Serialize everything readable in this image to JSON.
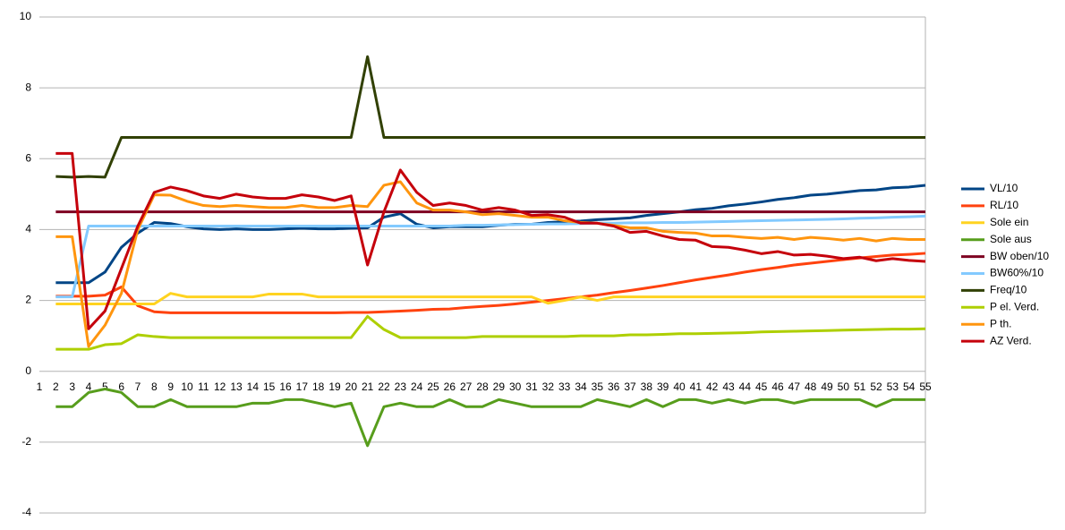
{
  "chart_data": {
    "type": "line",
    "categories": [
      1,
      2,
      3,
      4,
      5,
      6,
      7,
      8,
      9,
      10,
      11,
      12,
      13,
      14,
      15,
      16,
      17,
      18,
      19,
      20,
      21,
      22,
      23,
      24,
      25,
      26,
      27,
      28,
      29,
      30,
      31,
      32,
      33,
      34,
      35,
      36,
      37,
      38,
      39,
      40,
      41,
      42,
      43,
      44,
      45,
      46,
      47,
      48,
      49,
      50,
      51,
      52,
      53,
      54,
      55
    ],
    "ylim": [
      -4,
      10
    ],
    "yticks": [
      -4,
      -2,
      0,
      2,
      4,
      6,
      8,
      10
    ],
    "grid": true,
    "legend": "right",
    "series": [
      {
        "name": "VL/10",
        "color": "#004586",
        "values": [
          null,
          2.5,
          2.5,
          2.5,
          2.8,
          3.5,
          3.9,
          4.2,
          4.17,
          4.08,
          4.02,
          4.0,
          4.02,
          4.0,
          4.0,
          4.02,
          4.04,
          4.02,
          4.02,
          4.04,
          4.05,
          4.35,
          4.45,
          4.15,
          4.05,
          4.08,
          4.08,
          4.08,
          4.12,
          4.15,
          4.15,
          4.2,
          4.22,
          4.24,
          4.28,
          4.3,
          4.33,
          4.4,
          4.45,
          4.5,
          4.56,
          4.6,
          4.67,
          4.72,
          4.78,
          4.85,
          4.9,
          4.97,
          5.0,
          5.05,
          5.1,
          5.12,
          5.18,
          5.2,
          5.25
        ]
      },
      {
        "name": "RL/10",
        "color": "#ff420e",
        "values": [
          null,
          2.12,
          2.12,
          2.12,
          2.15,
          2.38,
          1.85,
          1.68,
          1.65,
          1.65,
          1.65,
          1.65,
          1.65,
          1.65,
          1.65,
          1.65,
          1.65,
          1.65,
          1.65,
          1.66,
          1.66,
          1.68,
          1.7,
          1.72,
          1.75,
          1.76,
          1.8,
          1.83,
          1.86,
          1.9,
          1.95,
          2.0,
          2.05,
          2.1,
          2.15,
          2.22,
          2.28,
          2.35,
          2.42,
          2.5,
          2.58,
          2.65,
          2.72,
          2.8,
          2.87,
          2.93,
          3.0,
          3.05,
          3.1,
          3.15,
          3.2,
          3.24,
          3.28,
          3.3,
          3.33
        ]
      },
      {
        "name": "Sole ein",
        "color": "#ffd320",
        "values": [
          null,
          1.9,
          1.9,
          1.9,
          1.9,
          1.9,
          1.9,
          1.9,
          2.2,
          2.1,
          2.1,
          2.1,
          2.1,
          2.1,
          2.18,
          2.18,
          2.18,
          2.1,
          2.1,
          2.1,
          2.1,
          2.1,
          2.1,
          2.1,
          2.1,
          2.1,
          2.1,
          2.1,
          2.1,
          2.1,
          2.1,
          1.92,
          2.0,
          2.1,
          2.0,
          2.1,
          2.1,
          2.1,
          2.1,
          2.1,
          2.1,
          2.1,
          2.1,
          2.1,
          2.1,
          2.1,
          2.1,
          2.1,
          2.1,
          2.1,
          2.1,
          2.1,
          2.1,
          2.1,
          2.1
        ]
      },
      {
        "name": "Sole aus",
        "color": "#579d1c",
        "values": [
          null,
          -1,
          -1,
          -0.6,
          -0.5,
          -0.6,
          -1,
          -1,
          -0.8,
          -1,
          -1,
          -1,
          -1,
          -0.9,
          -0.9,
          -0.8,
          -0.8,
          -0.9,
          -1,
          -0.9,
          -2.1,
          -1,
          -0.9,
          -1,
          -1,
          -0.8,
          -1,
          -1,
          -0.8,
          -0.9,
          -1,
          -1,
          -1,
          -1,
          -0.8,
          -0.9,
          -1,
          -0.8,
          -1,
          -0.8,
          -0.8,
          -0.9,
          -0.8,
          -0.9,
          -0.8,
          -0.8,
          -0.9,
          -0.8,
          -0.8,
          -0.8,
          -0.8,
          -1,
          -0.8,
          -0.8,
          -0.8
        ]
      },
      {
        "name": "BW oben/10",
        "color": "#7e0021",
        "values": [
          null,
          4.5,
          4.5,
          4.5,
          4.5,
          4.5,
          4.5,
          4.5,
          4.5,
          4.5,
          4.5,
          4.5,
          4.5,
          4.5,
          4.5,
          4.5,
          4.5,
          4.5,
          4.5,
          4.5,
          4.5,
          4.5,
          4.5,
          4.5,
          4.5,
          4.5,
          4.5,
          4.5,
          4.5,
          4.5,
          4.5,
          4.5,
          4.5,
          4.5,
          4.5,
          4.5,
          4.5,
          4.5,
          4.5,
          4.5,
          4.5,
          4.5,
          4.5,
          4.5,
          4.5,
          4.5,
          4.5,
          4.5,
          4.5,
          4.5,
          4.5,
          4.5,
          4.5,
          4.5,
          4.5
        ]
      },
      {
        "name": "BW60%/10",
        "color": "#83caff",
        "values": [
          null,
          2.1,
          2.1,
          4.1,
          4.1,
          4.1,
          4.1,
          4.1,
          4.1,
          4.1,
          4.1,
          4.1,
          4.1,
          4.1,
          4.1,
          4.1,
          4.1,
          4.1,
          4.1,
          4.1,
          4.1,
          4.1,
          4.1,
          4.1,
          4.1,
          4.1,
          4.12,
          4.12,
          4.13,
          4.14,
          4.15,
          4.16,
          4.16,
          4.17,
          4.18,
          4.18,
          4.19,
          4.19,
          4.2,
          4.2,
          4.21,
          4.22,
          4.23,
          4.24,
          4.25,
          4.26,
          4.27,
          4.28,
          4.29,
          4.3,
          4.32,
          4.33,
          4.35,
          4.36,
          4.38
        ]
      },
      {
        "name": "Freq/10",
        "color": "#314004",
        "values": [
          null,
          5.5,
          5.48,
          5.5,
          5.48,
          6.6,
          6.6,
          6.6,
          6.6,
          6.6,
          6.6,
          6.6,
          6.6,
          6.6,
          6.6,
          6.6,
          6.6,
          6.6,
          6.6,
          6.6,
          8.88,
          6.6,
          6.6,
          6.6,
          6.6,
          6.6,
          6.6,
          6.6,
          6.6,
          6.6,
          6.6,
          6.6,
          6.6,
          6.6,
          6.6,
          6.6,
          6.6,
          6.6,
          6.6,
          6.6,
          6.6,
          6.6,
          6.6,
          6.6,
          6.6,
          6.6,
          6.6,
          6.6,
          6.6,
          6.6,
          6.6,
          6.6,
          6.6,
          6.6,
          6.6
        ]
      },
      {
        "name": "P el. Verd.",
        "color": "#aecf00",
        "values": [
          null,
          0.62,
          0.62,
          0.62,
          0.75,
          0.78,
          1.03,
          0.98,
          0.95,
          0.95,
          0.95,
          0.95,
          0.95,
          0.95,
          0.95,
          0.95,
          0.95,
          0.95,
          0.95,
          0.95,
          1.55,
          1.18,
          0.95,
          0.95,
          0.95,
          0.95,
          0.95,
          0.98,
          0.98,
          0.98,
          0.98,
          0.98,
          0.98,
          1.0,
          1.0,
          1.0,
          1.03,
          1.03,
          1.04,
          1.06,
          1.06,
          1.07,
          1.08,
          1.09,
          1.11,
          1.12,
          1.13,
          1.14,
          1.15,
          1.16,
          1.17,
          1.18,
          1.19,
          1.19,
          1.2
        ]
      },
      {
        "name": "P th.",
        "color": "#ff950e",
        "values": [
          null,
          3.8,
          3.8,
          0.7,
          1.3,
          2.2,
          4.0,
          4.98,
          4.97,
          4.8,
          4.68,
          4.65,
          4.68,
          4.65,
          4.62,
          4.62,
          4.68,
          4.62,
          4.62,
          4.68,
          4.65,
          5.25,
          5.35,
          4.75,
          4.55,
          4.55,
          4.5,
          4.42,
          4.45,
          4.4,
          4.35,
          4.35,
          4.25,
          4.2,
          4.18,
          4.12,
          4.05,
          4.05,
          3.95,
          3.92,
          3.9,
          3.82,
          3.82,
          3.78,
          3.75,
          3.78,
          3.72,
          3.78,
          3.75,
          3.7,
          3.75,
          3.68,
          3.75,
          3.72,
          3.72
        ]
      },
      {
        "name": "AZ Verd.",
        "color": "#c5000b",
        "values": [
          null,
          6.15,
          6.15,
          1.2,
          1.7,
          2.9,
          4.1,
          5.05,
          5.2,
          5.1,
          4.95,
          4.88,
          5.0,
          4.92,
          4.88,
          4.88,
          4.98,
          4.92,
          4.82,
          4.95,
          3.0,
          4.5,
          5.68,
          5.05,
          4.68,
          4.75,
          4.68,
          4.55,
          4.62,
          4.55,
          4.4,
          4.42,
          4.35,
          4.18,
          4.18,
          4.1,
          3.92,
          3.95,
          3.82,
          3.72,
          3.7,
          3.52,
          3.5,
          3.42,
          3.32,
          3.38,
          3.28,
          3.3,
          3.25,
          3.18,
          3.22,
          3.12,
          3.18,
          3.13,
          3.1
        ]
      }
    ]
  }
}
